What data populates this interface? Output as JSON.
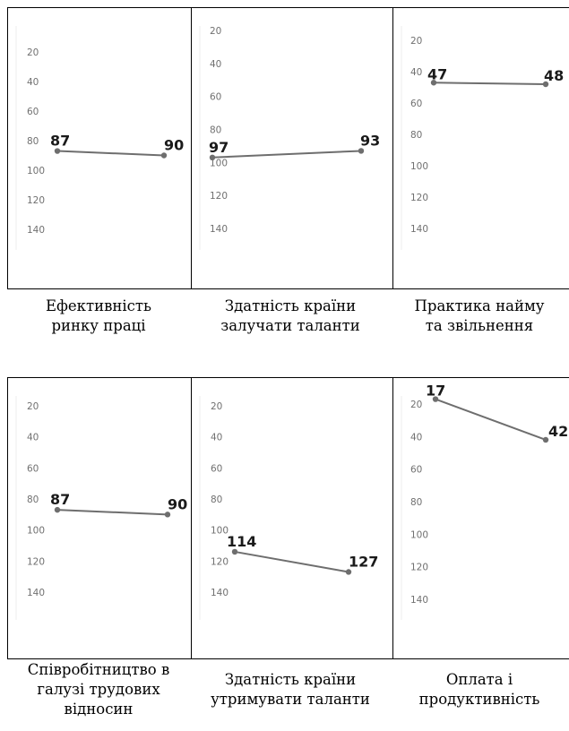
{
  "chart_data": [
    {
      "type": "line",
      "caption": [
        "Ефективність",
        "ринку праці"
      ],
      "yticks": [
        "20",
        "40",
        "60",
        "80",
        "100",
        "120",
        "140"
      ],
      "points": [
        {
          "value": 87,
          "label": "87"
        },
        {
          "value": 90,
          "label": "90"
        }
      ],
      "ylim": [
        0,
        160
      ]
    },
    {
      "type": "line",
      "caption": [
        "Здатність країни",
        "залучати таланти"
      ],
      "yticks": [
        "20",
        "40",
        "60",
        "80",
        "100",
        "120",
        "140"
      ],
      "points": [
        {
          "value": 97,
          "label": "97"
        },
        {
          "value": 93,
          "label": "93"
        }
      ],
      "ylim": [
        0,
        160
      ]
    },
    {
      "type": "line",
      "caption": [
        "Практика найму",
        "та звільнення"
      ],
      "yticks": [
        "20",
        "40",
        "60",
        "80",
        "100",
        "120",
        "140"
      ],
      "points": [
        {
          "value": 47,
          "label": "47"
        },
        {
          "value": 48,
          "label": "48"
        }
      ],
      "ylim": [
        0,
        160
      ]
    },
    {
      "type": "line",
      "caption": [
        "Співробітництво в",
        "галузі трудових",
        "відносин"
      ],
      "yticks": [
        "20",
        "40",
        "60",
        "80",
        "100",
        "120",
        "140"
      ],
      "points": [
        {
          "value": 87,
          "label": "87"
        },
        {
          "value": 90,
          "label": "90"
        }
      ],
      "ylim": [
        0,
        160
      ]
    },
    {
      "type": "line",
      "caption": [
        "Здатність країни",
        "утримувати таланти"
      ],
      "yticks": [
        "20",
        "40",
        "60",
        "80",
        "100",
        "120",
        "140"
      ],
      "points": [
        {
          "value": 114,
          "label": "114"
        },
        {
          "value": 127,
          "label": "127"
        }
      ],
      "ylim": [
        0,
        160
      ]
    },
    {
      "type": "line",
      "caption": [
        "Оплата і",
        "продуктивність"
      ],
      "yticks": [
        "20",
        "40",
        "60",
        "80",
        "100",
        "120",
        "140"
      ],
      "points": [
        {
          "value": 17,
          "label": "17"
        },
        {
          "value": 42,
          "label": "42"
        }
      ],
      "ylim": [
        0,
        160
      ]
    }
  ],
  "colors": {
    "line": "#6e6e6e",
    "tick": "#707070",
    "border": "#000000"
  }
}
